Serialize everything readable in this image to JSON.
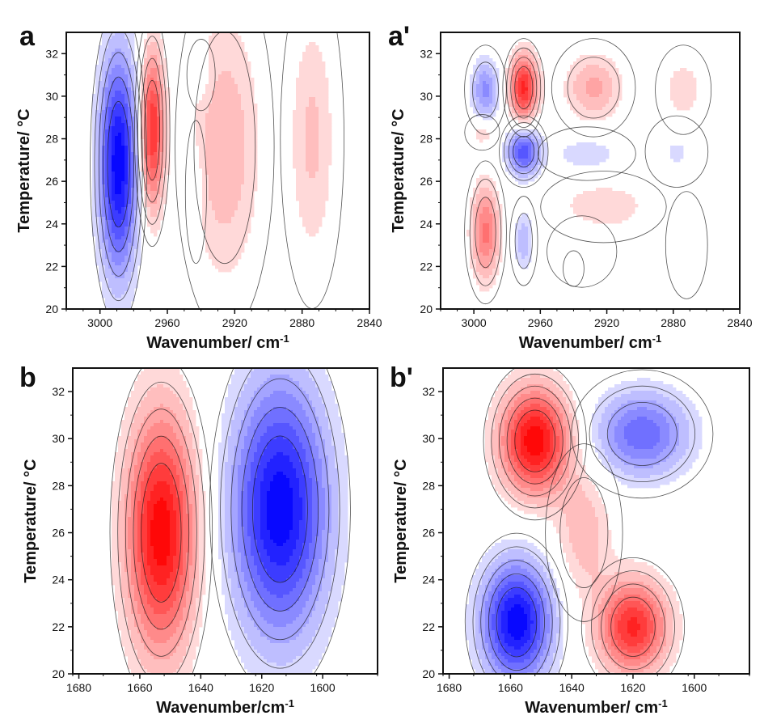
{
  "chart_data": [
    {
      "type": "heatmap",
      "panel_label": "a",
      "xlabel": "Wavenumber/ cm",
      "xlabel_sup": "-1",
      "ylabel": "Temperature/ °C",
      "xlim": [
        3020,
        2840
      ],
      "ylim": [
        20,
        33
      ],
      "xticks": [
        "3000",
        "2960",
        "2920",
        "2880",
        "2840"
      ],
      "yticks": [
        "20",
        "22",
        "24",
        "26",
        "28",
        "30",
        "32"
      ],
      "features": [
        {
          "x": 2989,
          "y": 26.8,
          "sx": 8,
          "sy": 3.6,
          "value": -1.0
        },
        {
          "x": 2969,
          "y": 28.4,
          "sx": 5,
          "sy": 2.6,
          "value": 0.85
        },
        {
          "x": 2926,
          "y": 27.6,
          "sx": 14,
          "sy": 4.2,
          "value": 0.32
        },
        {
          "x": 2874,
          "y": 28.0,
          "sx": 9,
          "sy": 3.8,
          "value": 0.25
        },
        {
          "x": 2943,
          "y": 25.5,
          "sx": 3,
          "sy": 1.6,
          "value": -0.12
        },
        {
          "x": 2940,
          "y": 31.0,
          "sx": 4,
          "sy": 0.8,
          "value": -0.12
        }
      ]
    },
    {
      "type": "heatmap",
      "panel_label": "a'",
      "xlabel": "Wavenumber/ cm",
      "xlabel_sup": "-1",
      "ylabel": "Temperature/ °C",
      "xlim": [
        3020,
        2840
      ],
      "ylim": [
        20,
        33
      ],
      "xticks": [
        "3000",
        "2960",
        "2920",
        "2880",
        "2840"
      ],
      "yticks": [
        "20",
        "22",
        "24",
        "26",
        "28",
        "30",
        "32"
      ],
      "features": [
        {
          "x": 2993,
          "y": 30.3,
          "sx": 6,
          "sy": 1.0,
          "value": -0.45
        },
        {
          "x": 2970,
          "y": 30.4,
          "sx": 6,
          "sy": 1.1,
          "value": 0.85
        },
        {
          "x": 2928,
          "y": 30.4,
          "sx": 12,
          "sy": 1.1,
          "value": 0.35
        },
        {
          "x": 2874,
          "y": 30.3,
          "sx": 8,
          "sy": 1.0,
          "value": 0.2
        },
        {
          "x": 2970,
          "y": 27.4,
          "sx": 7,
          "sy": 0.8,
          "value": -0.7
        },
        {
          "x": 2932,
          "y": 27.3,
          "sx": 14,
          "sy": 0.6,
          "value": -0.2
        },
        {
          "x": 2878,
          "y": 27.4,
          "sx": 9,
          "sy": 0.8,
          "value": -0.14
        },
        {
          "x": 2995,
          "y": 28.3,
          "sx": 5,
          "sy": 0.4,
          "value": 0.22
        },
        {
          "x": 2993,
          "y": 23.6,
          "sx": 6,
          "sy": 1.6,
          "value": 0.55
        },
        {
          "x": 2970,
          "y": 23.2,
          "sx": 4,
          "sy": 1.0,
          "value": -0.3
        },
        {
          "x": 2922,
          "y": 24.8,
          "sx": 18,
          "sy": 0.8,
          "value": 0.22
        },
        {
          "x": 2935,
          "y": 22.7,
          "sx": 10,
          "sy": 0.8,
          "value": -0.12
        },
        {
          "x": 2872,
          "y": 23.0,
          "sx": 6,
          "sy": 1.2,
          "value": -0.1
        },
        {
          "x": 2940,
          "y": 21.9,
          "sx": 3,
          "sy": 0.4,
          "value": 0.18
        }
      ]
    },
    {
      "type": "heatmap",
      "panel_label": "b",
      "xlabel": "Wavenumber/cm",
      "xlabel_sup": "-1",
      "ylabel": "Temperature/ °C",
      "xlim": [
        1682,
        1582
      ],
      "ylim": [
        20,
        33
      ],
      "xticks": [
        "1680",
        "1660",
        "1640",
        "1620",
        "1600"
      ],
      "yticks": [
        "20",
        "22",
        "24",
        "26",
        "28",
        "30",
        "32"
      ],
      "features": [
        {
          "x": 1653,
          "y": 26.0,
          "sx": 8,
          "sy": 3.6,
          "value": 1.0
        },
        {
          "x": 1614,
          "y": 27.0,
          "sx": 11,
          "sy": 3.8,
          "value": -1.0
        }
      ]
    },
    {
      "type": "heatmap",
      "panel_label": "b'",
      "xlabel": "Wavenumber/ cm",
      "xlabel_sup": "-1",
      "ylabel": "Temperature/ °C",
      "xlim": [
        1682,
        1582
      ],
      "ylim": [
        20,
        33
      ],
      "xticks": [
        "1680",
        "1660",
        "1640",
        "1620",
        "1600"
      ],
      "yticks": [
        "20",
        "22",
        "24",
        "26",
        "28",
        "30",
        "32"
      ],
      "features": [
        {
          "x": 1652,
          "y": 29.9,
          "sx": 8,
          "sy": 1.6,
          "value": 1.0
        },
        {
          "x": 1617,
          "y": 30.2,
          "sx": 11,
          "sy": 1.3,
          "value": -0.6
        },
        {
          "x": 1658,
          "y": 22.2,
          "sx": 8,
          "sy": 1.8,
          "value": -1.0
        },
        {
          "x": 1620,
          "y": 22.0,
          "sx": 8,
          "sy": 1.4,
          "value": 0.85
        },
        {
          "x": 1636,
          "y": 26.0,
          "sx": 6,
          "sy": 1.8,
          "value": 0.3
        }
      ]
    }
  ],
  "colors": {
    "positive": "#ff0000",
    "negative": "#0000ff",
    "background": "#ffffff",
    "contour": "#1a1a1a"
  }
}
